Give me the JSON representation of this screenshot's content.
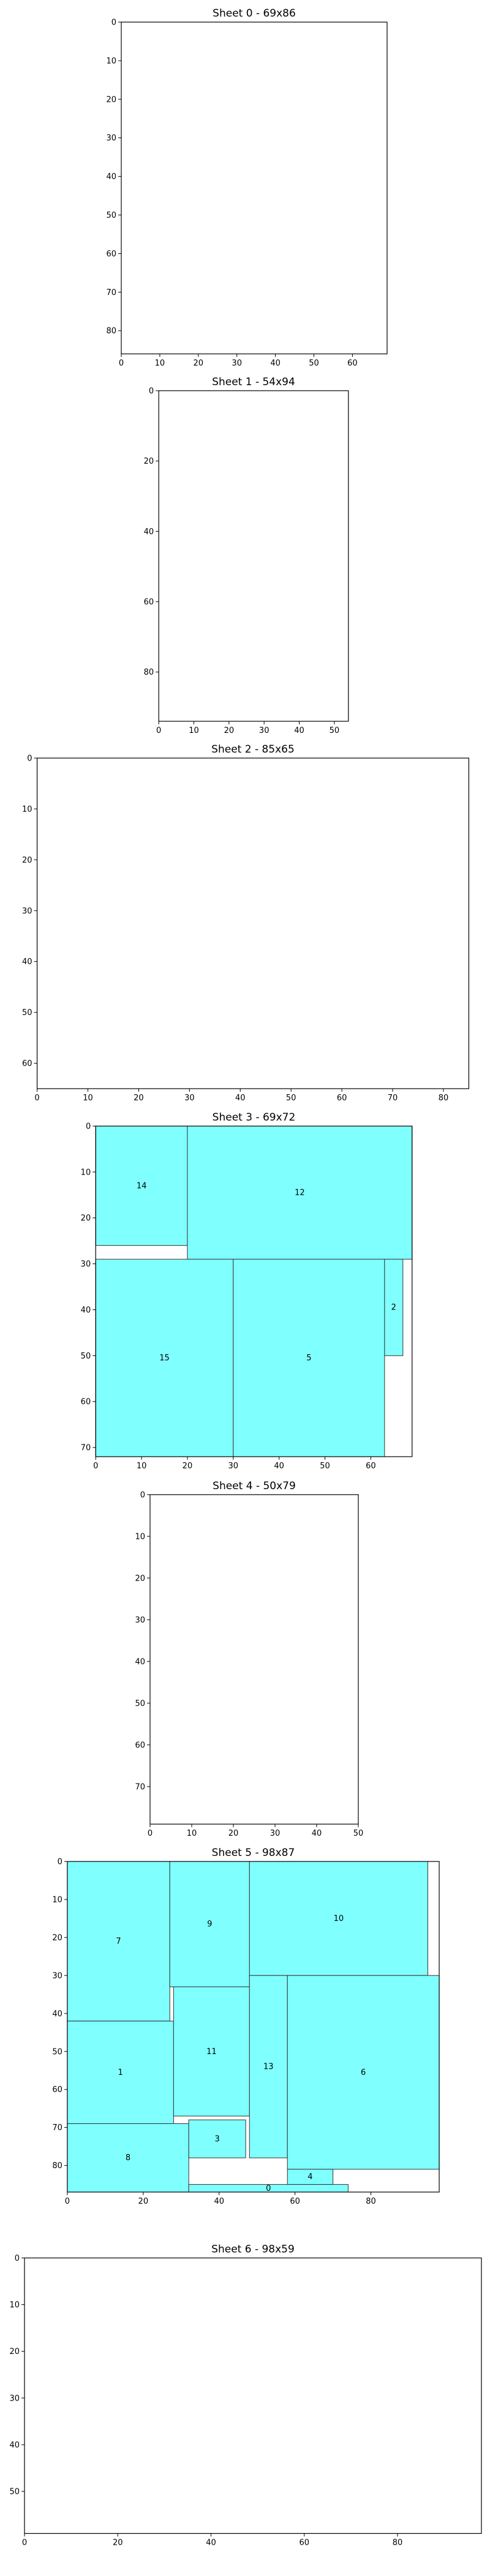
{
  "chart_data": {
    "type": "packing-layout",
    "fill_color": "#80ffff",
    "sheets": [
      {
        "title": "Sheet 0 - 69x86",
        "width": 69,
        "height": 86,
        "xticks": [
          0,
          10,
          20,
          30,
          40,
          50,
          60
        ],
        "yticks": [
          0,
          10,
          20,
          30,
          40,
          50,
          60,
          70,
          80
        ],
        "pieces": []
      },
      {
        "title": "Sheet 1 - 54x94",
        "width": 54,
        "height": 94,
        "xticks": [
          0,
          10,
          20,
          30,
          40,
          50
        ],
        "yticks": [
          0,
          20,
          40,
          60,
          80
        ],
        "pieces": []
      },
      {
        "title": "Sheet 2 - 85x65",
        "width": 85,
        "height": 65,
        "xticks": [
          0,
          10,
          20,
          30,
          40,
          50,
          60,
          70,
          80
        ],
        "yticks": [
          0,
          10,
          20,
          30,
          40,
          50,
          60
        ],
        "pieces": []
      },
      {
        "title": "Sheet 3 - 69x72",
        "width": 69,
        "height": 72,
        "xticks": [
          0,
          10,
          20,
          30,
          40,
          50,
          60
        ],
        "yticks": [
          0,
          10,
          20,
          30,
          40,
          50,
          60,
          70
        ],
        "pieces": [
          {
            "label": "14",
            "x": 0,
            "y": 0,
            "w": 20,
            "h": 26
          },
          {
            "label": "12",
            "x": 20,
            "y": 0,
            "w": 49,
            "h": 29
          },
          {
            "label": "15",
            "x": 0,
            "y": 29,
            "w": 30,
            "h": 43
          },
          {
            "label": "5",
            "x": 30,
            "y": 29,
            "w": 33,
            "h": 43
          },
          {
            "label": "2",
            "x": 63,
            "y": 29,
            "w": 4,
            "h": 21
          }
        ]
      },
      {
        "title": "Sheet 4 - 50x79",
        "width": 50,
        "height": 79,
        "xticks": [
          0,
          10,
          20,
          30,
          40,
          50
        ],
        "yticks": [
          0,
          10,
          20,
          30,
          40,
          50,
          60,
          70
        ],
        "pieces": []
      },
      {
        "title": "Sheet 5 - 98x87",
        "width": 98,
        "height": 87,
        "xticks": [
          0,
          20,
          40,
          60,
          80
        ],
        "yticks": [
          0,
          10,
          20,
          30,
          40,
          50,
          60,
          70,
          80
        ],
        "pieces": [
          {
            "label": "7",
            "x": 0,
            "y": 0,
            "w": 27,
            "h": 42
          },
          {
            "label": "9",
            "x": 27,
            "y": 0,
            "w": 21,
            "h": 33
          },
          {
            "label": "10",
            "x": 48,
            "y": 0,
            "w": 47,
            "h": 30
          },
          {
            "label": "1",
            "x": 0,
            "y": 42,
            "w": 28,
            "h": 27
          },
          {
            "label": "11",
            "x": 28,
            "y": 33,
            "w": 20,
            "h": 34
          },
          {
            "label": "13",
            "x": 48,
            "y": 30,
            "w": 10,
            "h": 48
          },
          {
            "label": "6",
            "x": 58,
            "y": 30,
            "w": 40,
            "h": 51
          },
          {
            "label": "8",
            "x": 0,
            "y": 69,
            "w": 32,
            "h": 18
          },
          {
            "label": "3",
            "x": 32,
            "y": 68,
            "w": 15,
            "h": 10
          },
          {
            "label": "4",
            "x": 58,
            "y": 81,
            "w": 12,
            "h": 4
          },
          {
            "label": "0",
            "x": 32,
            "y": 85,
            "w": 42,
            "h": 2
          }
        ]
      },
      {
        "title": "Sheet 6 - 98x59",
        "width": 98,
        "height": 59,
        "xticks": [
          0,
          20,
          40,
          60,
          80
        ],
        "yticks": [
          0,
          10,
          20,
          30,
          40,
          50
        ],
        "pieces": []
      }
    ]
  }
}
